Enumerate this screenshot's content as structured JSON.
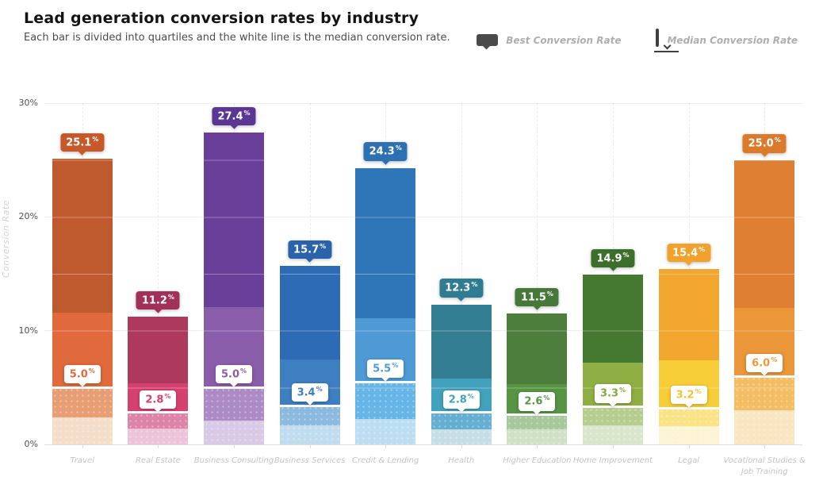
{
  "header": {
    "title": "Lead generation conversion rates by industry",
    "subtitle": "Each bar is divided into quartiles and the white line is the median conversion rate.",
    "legend": [
      {
        "icon": "best-bubble-icon",
        "label": "Best Conversion Rate"
      },
      {
        "icon": "median-bubble-icon",
        "label": "Median Conversion Rate"
      }
    ]
  },
  "chart_data": {
    "type": "bar",
    "subtype": "quartile-stacked-columns",
    "title": "Lead generation conversion rates by industry",
    "xlabel": "",
    "ylabel": "Conversion Rate",
    "ylim": [
      0,
      30
    ],
    "grid": "horizontal",
    "legend_position": "top-right",
    "percent_sign": "%",
    "yticks": [
      {
        "value": 0,
        "label": "0%"
      },
      {
        "value": 10,
        "label": "10%"
      },
      {
        "value": 20,
        "label": "20%"
      },
      {
        "value": 30,
        "label": "30%"
      }
    ],
    "categories": [
      "Travel",
      "Real Estate",
      "Business Consulting",
      "Business Services",
      "Credit & Lending",
      "Health",
      "Higher Education",
      "Home Improvement",
      "Legal",
      "Vocational Studies & Job Training"
    ],
    "series": [
      {
        "label": "Travel",
        "display_label": "Travel",
        "best": 25.1,
        "best_label": "25.1",
        "p75": 11.6,
        "median": 5.0,
        "median_label": "5.0",
        "p25": 2.4,
        "colors": {
          "q4": "#bf5a2e",
          "q3": "#e06a3b",
          "q2": "#e89e74",
          "q1": "#f4ddc9",
          "best_bubble": "#c65829",
          "median_text": "#e06a3b"
        }
      },
      {
        "label": "Real Estate",
        "display_label": "Real Estate",
        "best": 11.2,
        "best_label": "11.2",
        "p75": 5.4,
        "median": 2.8,
        "median_label": "2.8",
        "p25": 1.4,
        "colors": {
          "q4": "#ad3a5e",
          "q3": "#d64070",
          "q2": "#de83a8",
          "q1": "#ecc3d8",
          "best_bubble": "#a2315a",
          "median_text": "#d64070"
        }
      },
      {
        "label": "Business Consulting",
        "display_label": "Business Consulting",
        "best": 27.4,
        "best_label": "27.4",
        "p75": 12.1,
        "median": 5.0,
        "median_label": "5.0",
        "p25": 2.1,
        "colors": {
          "q4": "#6a3f99",
          "q3": "#8a5dab",
          "q2": "#ab8ac6",
          "q1": "#d8c9e6",
          "best_bubble": "#5b3794",
          "median_text": "#8a5dab"
        }
      },
      {
        "label": "Business Services",
        "display_label": "Business Services",
        "best": 15.7,
        "best_label": "15.7",
        "p75": 7.5,
        "median": 3.4,
        "median_label": "3.4",
        "p25": 1.7,
        "colors": {
          "q4": "#2d6cb4",
          "q3": "#3d7fc1",
          "q2": "#8cbade",
          "q1": "#c0dcee",
          "best_bubble": "#2a63a9",
          "median_text": "#3d7fc1"
        }
      },
      {
        "label": "Credit & Lending",
        "display_label": "Credit & Lending",
        "best": 24.3,
        "best_label": "24.3",
        "p75": 11.1,
        "median": 5.5,
        "median_label": "5.5",
        "p25": 2.2,
        "colors": {
          "q4": "#2e76b7",
          "q3": "#4d9ad5",
          "q2": "#66b5e7",
          "q1": "#bddef2",
          "best_bubble": "#2d71b3",
          "median_text": "#4d9ad5"
        }
      },
      {
        "label": "Health",
        "display_label": "Health",
        "best": 12.3,
        "best_label": "12.3",
        "p75": 5.8,
        "median": 2.8,
        "median_label": "2.8",
        "p25": 1.3,
        "colors": {
          "q4": "#347e94",
          "q3": "#42a2bd",
          "q2": "#64aed2",
          "q1": "#c6dfe6",
          "best_bubble": "#2f7b92",
          "median_text": "#42a2bd"
        }
      },
      {
        "label": "Higher Education",
        "display_label": "Higher Education",
        "best": 11.5,
        "best_label": "11.5",
        "p75": 5.3,
        "median": 2.6,
        "median_label": "2.6",
        "p25": 1.3,
        "colors": {
          "q4": "#4e7e3c",
          "q3": "#579544",
          "q2": "#a7c89c",
          "q1": "#d0e1c8",
          "best_bubble": "#477739",
          "median_text": "#579544"
        }
      },
      {
        "label": "Home Improvement",
        "display_label": "Home Improvement",
        "best": 14.9,
        "best_label": "14.9",
        "p75": 7.2,
        "median": 3.3,
        "median_label": "3.3",
        "p25": 1.7,
        "colors": {
          "q4": "#45792f",
          "q3": "#8fae44",
          "q2": "#b7cd8f",
          "q1": "#dae6cc",
          "best_bubble": "#3d6f2c",
          "median_text": "#7fa83e"
        }
      },
      {
        "label": "Legal",
        "display_label": "Legal",
        "best": 15.4,
        "best_label": "15.4",
        "p75": 7.4,
        "median": 3.2,
        "median_label": "3.2",
        "p25": 1.6,
        "colors": {
          "q4": "#f2a630",
          "q3": "#f8ce38",
          "q2": "#fae387",
          "q1": "#fdf4d4",
          "best_bubble": "#f0a22c",
          "median_text": "#f2c233"
        }
      },
      {
        "label": "Vocational Studies & Job Training",
        "display_label": "Vocational Studies &\nJob Training",
        "best": 25.0,
        "best_label": "25.0",
        "p75": 12.0,
        "median": 6.0,
        "median_label": "6.0",
        "p25": 3.0,
        "colors": {
          "q4": "#df7f33",
          "q3": "#ea9639",
          "q2": "#f3bd63",
          "q1": "#f9e5bf",
          "best_bubble": "#dc7a2c",
          "median_text": "#ec9a3d"
        }
      }
    ]
  }
}
